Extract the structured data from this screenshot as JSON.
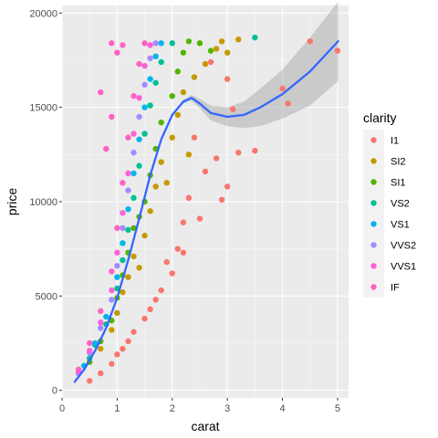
{
  "chart_data": {
    "type": "scatter",
    "xlabel": "carat",
    "ylabel": "price",
    "xlim": [
      0,
      5.2
    ],
    "ylim": [
      -400,
      20400
    ],
    "xticks": [
      0,
      1,
      2,
      3,
      4,
      5
    ],
    "xtick_labels": [
      "0",
      "1",
      "2",
      "3",
      "4",
      "5"
    ],
    "yticks": [
      0,
      5000,
      10000,
      15000,
      20000
    ],
    "ytick_labels": [
      "0",
      "5000",
      "10000",
      "15000",
      "20000"
    ],
    "grid": true,
    "legend_position": "right",
    "legend_title": "clarity",
    "series": [
      {
        "name": "I1",
        "color": "#F8766D",
        "points": [
          [
            0.5,
            500
          ],
          [
            0.7,
            900
          ],
          [
            0.9,
            1400
          ],
          [
            1.0,
            1900
          ],
          [
            1.1,
            2200
          ],
          [
            1.2,
            2600
          ],
          [
            1.3,
            3100
          ],
          [
            1.5,
            3800
          ],
          [
            1.6,
            4300
          ],
          [
            1.7,
            4800
          ],
          [
            1.8,
            5300
          ],
          [
            2.0,
            6200
          ],
          [
            2.1,
            7500
          ],
          [
            2.2,
            8900
          ],
          [
            2.3,
            10200
          ],
          [
            2.5,
            9100
          ],
          [
            2.6,
            11600
          ],
          [
            2.8,
            12300
          ],
          [
            3.0,
            10800
          ],
          [
            3.1,
            14900
          ],
          [
            3.2,
            12600
          ],
          [
            3.0,
            16500
          ],
          [
            2.7,
            17400
          ],
          [
            4.0,
            16000
          ],
          [
            4.1,
            15200
          ],
          [
            4.5,
            18500
          ],
          [
            5.0,
            18000
          ],
          [
            2.4,
            13400
          ],
          [
            2.2,
            7300
          ],
          [
            1.9,
            6800
          ],
          [
            3.5,
            12700
          ],
          [
            2.9,
            10100
          ]
        ]
      },
      {
        "name": "SI2",
        "color": "#C49A00",
        "points": [
          [
            0.7,
            2200
          ],
          [
            0.9,
            3200
          ],
          [
            1.0,
            4100
          ],
          [
            1.1,
            5200
          ],
          [
            1.2,
            6000
          ],
          [
            1.3,
            7100
          ],
          [
            1.5,
            8200
          ],
          [
            1.6,
            9500
          ],
          [
            1.7,
            10800
          ],
          [
            1.8,
            12100
          ],
          [
            2.0,
            13400
          ],
          [
            2.1,
            14600
          ],
          [
            2.2,
            15800
          ],
          [
            2.4,
            16600
          ],
          [
            2.6,
            17300
          ],
          [
            2.8,
            18100
          ],
          [
            2.9,
            18500
          ],
          [
            3.0,
            17900
          ],
          [
            3.2,
            18600
          ],
          [
            1.4,
            6500
          ],
          [
            1.9,
            11000
          ],
          [
            2.3,
            12500
          ]
        ]
      },
      {
        "name": "SI1",
        "color": "#53B400",
        "points": [
          [
            0.5,
            1500
          ],
          [
            0.7,
            2600
          ],
          [
            0.9,
            3700
          ],
          [
            1.0,
            4900
          ],
          [
            1.1,
            6100
          ],
          [
            1.2,
            7300
          ],
          [
            1.3,
            8600
          ],
          [
            1.5,
            10000
          ],
          [
            1.6,
            11400
          ],
          [
            1.7,
            12800
          ],
          [
            1.8,
            14200
          ],
          [
            2.0,
            15600
          ],
          [
            2.1,
            16900
          ],
          [
            2.2,
            17900
          ],
          [
            2.3,
            18500
          ],
          [
            2.5,
            18400
          ],
          [
            2.7,
            18000
          ],
          [
            1.4,
            9200
          ]
        ]
      },
      {
        "name": "VS2",
        "color": "#00C094",
        "points": [
          [
            0.5,
            1700
          ],
          [
            0.6,
            2400
          ],
          [
            0.8,
            3500
          ],
          [
            1.0,
            5400
          ],
          [
            1.1,
            6900
          ],
          [
            1.2,
            8500
          ],
          [
            1.3,
            10200
          ],
          [
            1.4,
            11900
          ],
          [
            1.5,
            13600
          ],
          [
            1.6,
            15100
          ],
          [
            1.7,
            16300
          ],
          [
            1.8,
            17400
          ],
          [
            2.0,
            18400
          ],
          [
            3.5,
            18700
          ]
        ]
      },
      {
        "name": "VS1",
        "color": "#00B6EB",
        "points": [
          [
            0.4,
            1300
          ],
          [
            0.6,
            2500
          ],
          [
            0.8,
            3900
          ],
          [
            1.0,
            6000
          ],
          [
            1.1,
            7800
          ],
          [
            1.2,
            9600
          ],
          [
            1.3,
            11500
          ],
          [
            1.4,
            13300
          ],
          [
            1.5,
            15000
          ],
          [
            1.6,
            16500
          ],
          [
            1.7,
            17700
          ],
          [
            1.8,
            18400
          ]
        ]
      },
      {
        "name": "VVS2",
        "color": "#A58AFF",
        "points": [
          [
            0.3,
            900
          ],
          [
            0.5,
            2000
          ],
          [
            0.7,
            3300
          ],
          [
            0.9,
            4800
          ],
          [
            1.0,
            6600
          ],
          [
            1.1,
            8600
          ],
          [
            1.2,
            10600
          ],
          [
            1.3,
            12600
          ],
          [
            1.4,
            14500
          ],
          [
            1.5,
            16200
          ],
          [
            1.6,
            17600
          ],
          [
            1.7,
            18400
          ]
        ]
      },
      {
        "name": "VVS1",
        "color": "#FB61D7",
        "points": [
          [
            0.3,
            1000
          ],
          [
            0.5,
            2100
          ],
          [
            0.7,
            3600
          ],
          [
            0.9,
            5300
          ],
          [
            1.0,
            7300
          ],
          [
            1.1,
            9400
          ],
          [
            1.2,
            11500
          ],
          [
            1.3,
            13600
          ],
          [
            1.4,
            15500
          ],
          [
            1.5,
            17200
          ],
          [
            1.6,
            18300
          ]
        ]
      },
      {
        "name": "IF",
        "color": "#FF61C3",
        "points": [
          [
            0.3,
            1100
          ],
          [
            0.5,
            2500
          ],
          [
            0.7,
            4200
          ],
          [
            0.9,
            6300
          ],
          [
            1.0,
            8600
          ],
          [
            1.1,
            11000
          ],
          [
            1.2,
            13400
          ],
          [
            1.3,
            15600
          ],
          [
            1.4,
            17300
          ],
          [
            1.5,
            18400
          ],
          [
            0.9,
            14500
          ],
          [
            0.8,
            12800
          ],
          [
            0.7,
            15800
          ],
          [
            1.0,
            17900
          ],
          [
            0.9,
            18400
          ],
          [
            1.1,
            18300
          ]
        ]
      }
    ],
    "smooth": {
      "color": "#3366FF",
      "band_color": "#999999",
      "points": [
        [
          0.23,
          450
        ],
        [
          0.4,
          1100
        ],
        [
          0.6,
          2100
        ],
        [
          0.8,
          3300
        ],
        [
          1.0,
          4900
        ],
        [
          1.2,
          6900
        ],
        [
          1.4,
          9100
        ],
        [
          1.6,
          11400
        ],
        [
          1.8,
          13300
        ],
        [
          2.0,
          14600
        ],
        [
          2.2,
          15300
        ],
        [
          2.35,
          15500
        ],
        [
          2.5,
          15200
        ],
        [
          2.7,
          14700
        ],
        [
          3.0,
          14500
        ],
        [
          3.3,
          14600
        ],
        [
          3.6,
          15000
        ],
        [
          4.0,
          15700
        ],
        [
          4.5,
          16900
        ],
        [
          5.01,
          18500
        ]
      ],
      "band_upper": [
        [
          0.23,
          550
        ],
        [
          0.4,
          1150
        ],
        [
          0.6,
          2150
        ],
        [
          0.8,
          3350
        ],
        [
          1.0,
          4950
        ],
        [
          1.2,
          6950
        ],
        [
          1.4,
          9150
        ],
        [
          1.6,
          11450
        ],
        [
          1.8,
          13350
        ],
        [
          2.0,
          14650
        ],
        [
          2.2,
          15400
        ],
        [
          2.35,
          15650
        ],
        [
          2.5,
          15450
        ],
        [
          2.7,
          15100
        ],
        [
          3.0,
          15000
        ],
        [
          3.3,
          15300
        ],
        [
          3.6,
          16000
        ],
        [
          4.0,
          17000
        ],
        [
          4.5,
          18700
        ],
        [
          5.01,
          20600
        ]
      ],
      "band_lower": [
        [
          0.23,
          350
        ],
        [
          0.4,
          1050
        ],
        [
          0.6,
          2050
        ],
        [
          0.8,
          3250
        ],
        [
          1.0,
          4850
        ],
        [
          1.2,
          6850
        ],
        [
          1.4,
          9050
        ],
        [
          1.6,
          11350
        ],
        [
          1.8,
          13250
        ],
        [
          2.0,
          14550
        ],
        [
          2.2,
          15200
        ],
        [
          2.35,
          15350
        ],
        [
          2.5,
          14950
        ],
        [
          2.7,
          14300
        ],
        [
          3.0,
          14000
        ],
        [
          3.3,
          13900
        ],
        [
          3.6,
          14000
        ],
        [
          4.0,
          14400
        ],
        [
          4.5,
          15100
        ],
        [
          5.01,
          16400
        ]
      ]
    }
  }
}
